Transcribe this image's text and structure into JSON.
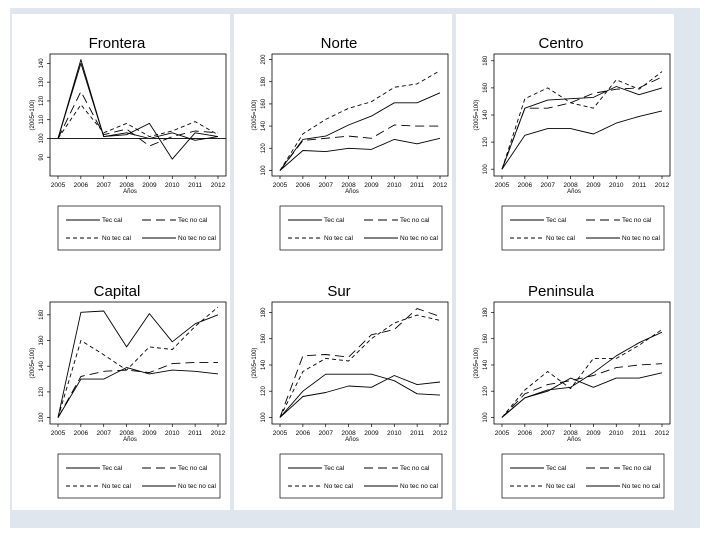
{
  "chart_data": [
    {
      "type": "line",
      "title": "Frontera",
      "ylabel": "(2005=100)",
      "xlabel": "Años",
      "x": [
        2005,
        2006,
        2007,
        2008,
        2009,
        2010,
        2011,
        2012
      ],
      "ylim": [
        80,
        145
      ],
      "yticks": [
        90,
        100,
        110,
        120,
        130,
        140
      ],
      "hline": 100,
      "series": [
        {
          "name": "Tec cal",
          "values": [
            100,
            142,
            101,
            102,
            108,
            89,
            103,
            101
          ]
        },
        {
          "name": "Tec no cal",
          "values": [
            100,
            125,
            102,
            105,
            96,
            101,
            104,
            103
          ]
        },
        {
          "name": "No tec cal",
          "values": [
            100,
            118,
            103,
            108,
            101,
            104,
            109,
            102
          ]
        },
        {
          "name": "No tec no cal",
          "values": [
            100,
            140,
            101,
            103,
            100,
            103,
            99,
            101
          ]
        }
      ],
      "legend_position": "bottom"
    },
    {
      "type": "line",
      "title": "Norte",
      "ylabel": "(2005=100)",
      "xlabel": "Años",
      "x": [
        2005,
        2006,
        2007,
        2008,
        2009,
        2010,
        2011,
        2012
      ],
      "ylim": [
        95,
        205
      ],
      "yticks": [
        100,
        120,
        140,
        160,
        180,
        200
      ],
      "series": [
        {
          "name": "Tec cal",
          "values": [
            100,
            128,
            131,
            141,
            149,
            161,
            161,
            170
          ]
        },
        {
          "name": "Tec no cal",
          "values": [
            100,
            127,
            129,
            131,
            129,
            141,
            140,
            140
          ]
        },
        {
          "name": "No tec cal",
          "values": [
            100,
            133,
            146,
            156,
            162,
            175,
            178,
            190
          ]
        },
        {
          "name": "No tec no cal",
          "values": [
            100,
            118,
            117,
            120,
            119,
            128,
            124,
            129
          ]
        }
      ],
      "legend_position": "bottom"
    },
    {
      "type": "line",
      "title": "Centro",
      "ylabel": "(2005=100)",
      "xlabel": "Años",
      "x": [
        2005,
        2006,
        2007,
        2008,
        2009,
        2010,
        2011,
        2012
      ],
      "ylim": [
        95,
        185
      ],
      "yticks": [
        100,
        120,
        140,
        160,
        180
      ],
      "series": [
        {
          "name": "Tec cal",
          "values": [
            100,
            145,
            151,
            152,
            153,
            161,
            155,
            160
          ]
        },
        {
          "name": "Tec no cal",
          "values": [
            100,
            145,
            145,
            149,
            156,
            159,
            160,
            168
          ]
        },
        {
          "name": "No tec cal",
          "values": [
            100,
            152,
            160,
            149,
            145,
            166,
            159,
            172
          ]
        },
        {
          "name": "No tec no cal",
          "values": [
            100,
            125,
            130,
            130,
            126,
            134,
            139,
            143
          ]
        }
      ],
      "legend_position": "bottom"
    },
    {
      "type": "line",
      "title": "Capital",
      "ylabel": "(2005=100)",
      "xlabel": "Años",
      "x": [
        2005,
        2006,
        2007,
        2008,
        2009,
        2010,
        2011,
        2012
      ],
      "ylim": [
        95,
        190
      ],
      "yticks": [
        100,
        120,
        140,
        160,
        180
      ],
      "series": [
        {
          "name": "Tec cal",
          "values": [
            100,
            182,
            183,
            155,
            181,
            159,
            173,
            180
          ]
        },
        {
          "name": "Tec no cal",
          "values": [
            100,
            132,
            136,
            137,
            135,
            142,
            143,
            143
          ]
        },
        {
          "name": "No tec cal",
          "values": [
            100,
            160,
            149,
            137,
            155,
            153,
            171,
            186
          ]
        },
        {
          "name": "No tec no cal",
          "values": [
            100,
            130,
            130,
            139,
            134,
            137,
            136,
            134
          ]
        }
      ],
      "legend_position": "bottom"
    },
    {
      "type": "line",
      "title": "Sur",
      "ylabel": "(2005=100)",
      "xlabel": "Años",
      "x": [
        2005,
        2006,
        2007,
        2008,
        2009,
        2010,
        2011,
        2012
      ],
      "ylim": [
        95,
        188
      ],
      "yticks": [
        100,
        120,
        140,
        160,
        180
      ],
      "series": [
        {
          "name": "Tec cal",
          "values": [
            100,
            120,
            133,
            133,
            133,
            128,
            118,
            117
          ]
        },
        {
          "name": "Tec no cal",
          "values": [
            100,
            147,
            148,
            146,
            163,
            167,
            183,
            177
          ]
        },
        {
          "name": "No tec cal",
          "values": [
            100,
            135,
            145,
            143,
            160,
            172,
            178,
            174
          ]
        },
        {
          "name": "No tec no cal",
          "values": [
            100,
            116,
            119,
            124,
            123,
            132,
            125,
            127
          ]
        }
      ],
      "legend_position": "bottom"
    },
    {
      "type": "line",
      "title": "Peninsula",
      "ylabel": "(2005=100)",
      "xlabel": "Años",
      "x": [
        2005,
        2006,
        2007,
        2008,
        2009,
        2010,
        2011,
        2012
      ],
      "ylim": [
        95,
        188
      ],
      "yticks": [
        100,
        120,
        140,
        160,
        180
      ],
      "series": [
        {
          "name": "Tec cal",
          "values": [
            100,
            115,
            121,
            123,
            134,
            147,
            157,
            165
          ]
        },
        {
          "name": "Tec no cal",
          "values": [
            100,
            118,
            125,
            128,
            132,
            138,
            140,
            141
          ]
        },
        {
          "name": "No tec cal",
          "values": [
            100,
            121,
            135,
            122,
            145,
            145,
            155,
            167
          ]
        },
        {
          "name": "No tec no cal",
          "values": [
            100,
            115,
            120,
            130,
            123,
            130,
            130,
            134
          ]
        }
      ],
      "legend_position": "bottom"
    }
  ]
}
